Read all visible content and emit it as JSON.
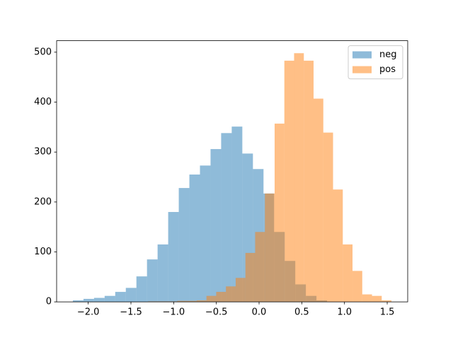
{
  "chart_data": {
    "type": "histogram",
    "series": [
      {
        "name": "neg",
        "color": "#1f77b4",
        "opacity": 0.5,
        "bins": [
          -2.18,
          -2.056,
          -1.932,
          -1.808,
          -1.684,
          -1.56,
          -1.436,
          -1.312,
          -1.188,
          -1.064,
          -0.94,
          -0.816,
          -0.692,
          -0.568,
          -0.444,
          -0.32,
          -0.196,
          -0.072,
          0.052,
          0.176,
          0.3,
          0.424,
          0.548,
          0.672,
          0.796
        ],
        "values": [
          3,
          6,
          8,
          12,
          20,
          28,
          51,
          85,
          115,
          180,
          228,
          255,
          273,
          306,
          338,
          351,
          297,
          266,
          217,
          140,
          82,
          35,
          12,
          3
        ]
      },
      {
        "name": "pos",
        "color": "#ff7f0e",
        "opacity": 0.5,
        "bins": [
          -1.3,
          -1.186,
          -1.072,
          -0.958,
          -0.844,
          -0.73,
          -0.616,
          -0.502,
          -0.388,
          -0.274,
          -0.16,
          -0.046,
          0.068,
          0.182,
          0.296,
          0.41,
          0.524,
          0.638,
          0.752,
          0.866,
          0.98,
          1.094,
          1.208,
          1.322,
          1.436,
          1.55
        ],
        "values": [
          1,
          1,
          1,
          2,
          2,
          3,
          12,
          20,
          31,
          48,
          98,
          140,
          217,
          357,
          483,
          498,
          483,
          407,
          339,
          225,
          115,
          62,
          15,
          12,
          3
        ]
      }
    ],
    "xlim": [
      -2.37,
      1.74
    ],
    "ylim": [
      0,
      523
    ],
    "xticks": [
      {
        "value": -2,
        "label": "−2.0"
      },
      {
        "value": -1.5,
        "label": "−1.5"
      },
      {
        "value": -1,
        "label": "−1.0"
      },
      {
        "value": -0.5,
        "label": "−0.5"
      },
      {
        "value": 0,
        "label": "0.0"
      },
      0.5,
      {
        "value": 1,
        "label": "1.0"
      },
      1.5
    ],
    "yticks": [
      0,
      100,
      200,
      300,
      400,
      500
    ],
    "legend": "upper right"
  }
}
